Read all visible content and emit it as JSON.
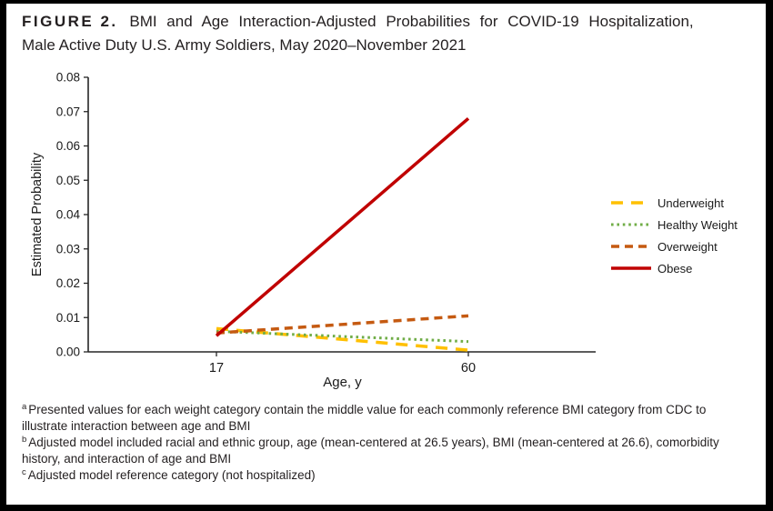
{
  "figure": {
    "label": "FIGURE 2.",
    "title_line1": "BMI and Age Interaction-Adjusted Probabilities for COVID-19 Hospitalization,",
    "title_line2": "Male Active Duty U.S. Army Soldiers, May 2020–November 2021"
  },
  "chart_data": {
    "type": "line",
    "xlabel": "Age, y",
    "ylabel": "Estimated Probability",
    "x": [
      17,
      60
    ],
    "x_ticks": [
      "17",
      "60"
    ],
    "y_ticks": [
      "0.00",
      "0.01",
      "0.02",
      "0.03",
      "0.04",
      "0.05",
      "0.06",
      "0.07",
      "0.08"
    ],
    "ylim": [
      0,
      0.08
    ],
    "grid": "off",
    "legend_position": "right",
    "series": [
      {
        "name": "Underweight",
        "values": [
          0.0068,
          0.0005
        ],
        "color": "#FFC000",
        "style": "long-dash"
      },
      {
        "name": "Healthy Weight",
        "values": [
          0.006,
          0.003
        ],
        "color": "#70AD47",
        "style": "dotted"
      },
      {
        "name": "Overweight",
        "values": [
          0.0055,
          0.0105
        ],
        "color": "#C55A11",
        "style": "dash"
      },
      {
        "name": "Obese",
        "values": [
          0.0047,
          0.068
        ],
        "color": "#C00000",
        "style": "solid"
      }
    ]
  },
  "footnotes": [
    {
      "marker": "a",
      "text": "Presented values for each weight category contain the middle value for each commonly reference BMI category from CDC to illustrate interaction between age and BMI"
    },
    {
      "marker": "b",
      "text": "Adjusted model included racial and ethnic group, age (mean-centered at 26.5 years), BMI (mean-centered at 26.6), comorbidity history, and interaction of age and BMI"
    },
    {
      "marker": "c",
      "text": "Adjusted model reference category (not hospitalized)"
    }
  ]
}
